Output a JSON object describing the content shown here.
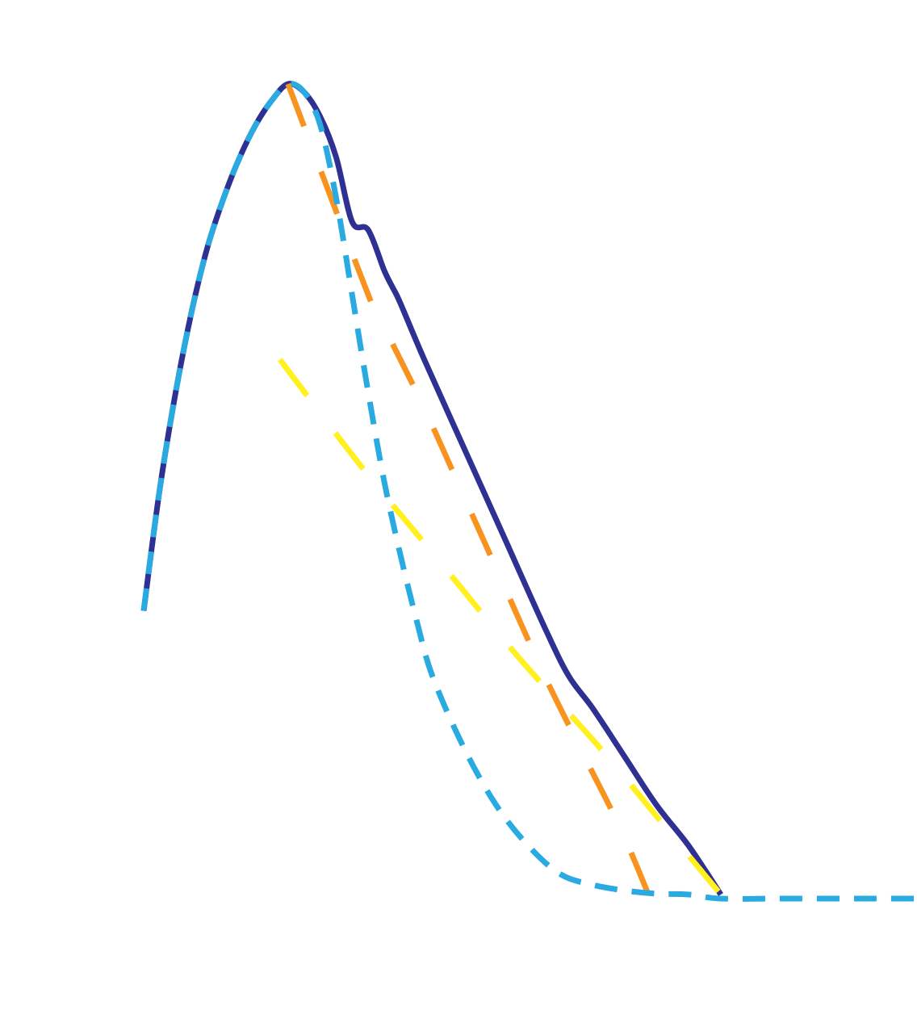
{
  "chart_data": {
    "type": "line",
    "title": "",
    "xlabel": "",
    "ylabel": "",
    "axes_visible": false,
    "grid": false,
    "legend": "none",
    "xlim": [
      0,
      1
    ],
    "ylim": [
      0,
      1
    ],
    "series": [
      {
        "color": "#2e3192",
        "style": "solid",
        "x": [
          0.0,
          0.02,
          0.04,
          0.06,
          0.08,
          0.1,
          0.12,
          0.14,
          0.16,
          0.18,
          0.2,
          0.22,
          0.24,
          0.26,
          0.28,
          0.3,
          0.31,
          0.32,
          0.35,
          0.4,
          0.45,
          0.5,
          0.53,
          0.56,
          0.6,
          0.64,
          0.68,
          0.72
        ],
        "y": [
          0.35,
          0.5,
          0.62,
          0.72,
          0.8,
          0.86,
          0.91,
          0.95,
          0.98,
          1.0,
          0.99,
          0.96,
          0.91,
          0.83,
          0.82,
          0.77,
          0.75,
          0.73,
          0.66,
          0.55,
          0.44,
          0.33,
          0.27,
          0.23,
          0.17,
          0.11,
          0.06,
          0.0
        ]
      },
      {
        "color": "#29aae1",
        "style": "dashed",
        "x": [
          0.0,
          0.02,
          0.04,
          0.06,
          0.08,
          0.1,
          0.12,
          0.14,
          0.16,
          0.18,
          0.2,
          0.22,
          0.24,
          0.26,
          0.28,
          0.3,
          0.32,
          0.34,
          0.36,
          0.4,
          0.44,
          0.48,
          0.52,
          0.56,
          0.6,
          0.64,
          0.68,
          0.72,
          0.8,
          0.9,
          1.0
        ],
        "y": [
          0.35,
          0.5,
          0.62,
          0.72,
          0.8,
          0.86,
          0.91,
          0.95,
          0.98,
          1.0,
          0.99,
          0.95,
          0.86,
          0.74,
          0.62,
          0.51,
          0.42,
          0.34,
          0.27,
          0.18,
          0.11,
          0.06,
          0.025,
          0.012,
          0.005,
          0.001,
          0.0,
          -0.005,
          -0.005,
          -0.005,
          -0.005
        ]
      },
      {
        "color": "#f7931e",
        "style": "dashed",
        "x": [
          0.18,
          0.28,
          0.3,
          0.35,
          0.4,
          0.45,
          0.5,
          0.55,
          0.6,
          0.65
        ],
        "y": [
          1.0,
          0.74,
          0.7,
          0.6,
          0.49,
          0.38,
          0.27,
          0.17,
          0.07,
          -0.05
        ]
      },
      {
        "color": "#fff01e",
        "style": "dashed",
        "x": [
          0.17,
          0.27,
          0.37,
          0.47,
          0.57,
          0.67,
          0.72
        ],
        "y": [
          0.66,
          0.53,
          0.41,
          0.29,
          0.18,
          0.06,
          0.0
        ]
      }
    ]
  }
}
